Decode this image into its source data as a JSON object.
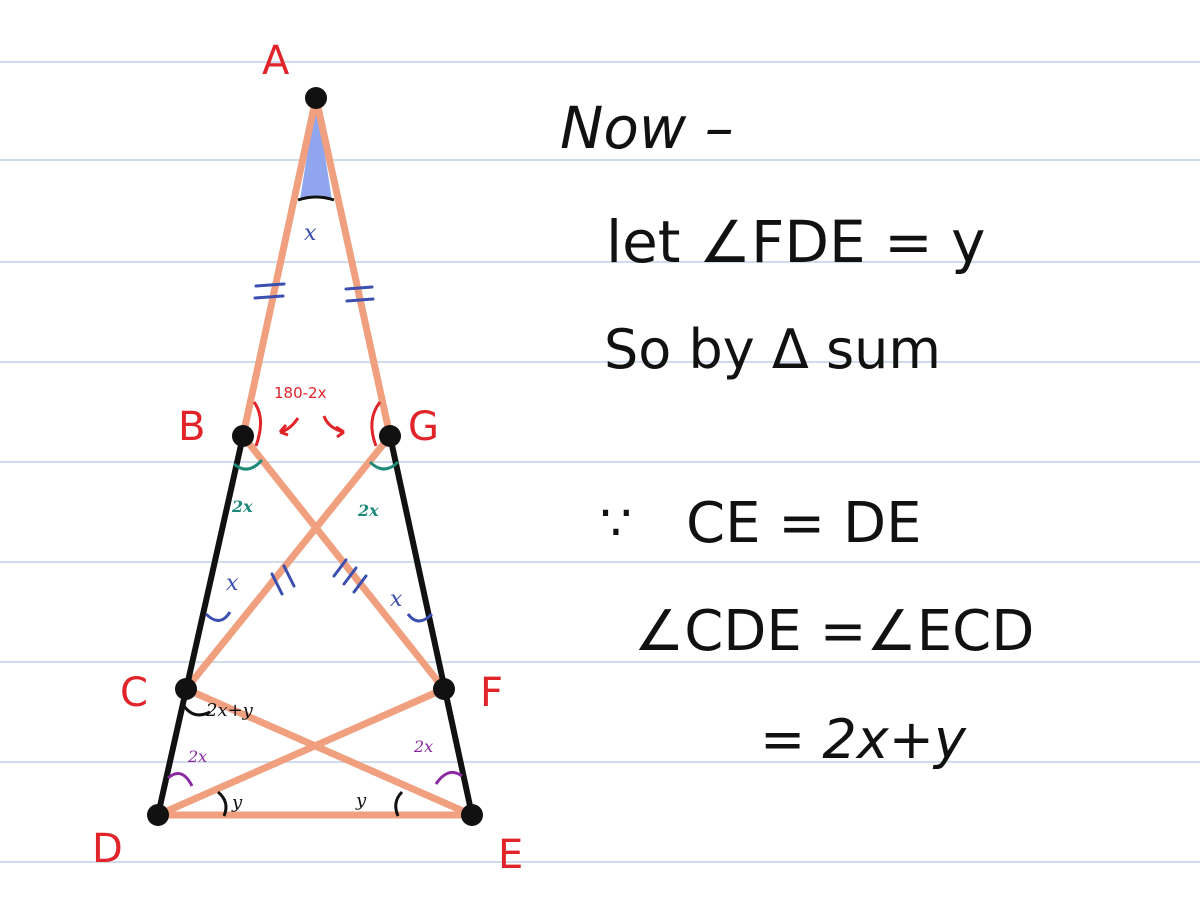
{
  "diagram": {
    "vertices": {
      "A": "A",
      "B": "B",
      "G": "G",
      "C": "C",
      "F": "F",
      "D": "D",
      "E": "E"
    },
    "angle_labels": {
      "apex": "x",
      "b_exterior": "180-2x",
      "b_lower": "2x",
      "g_lower": "2x",
      "c_lower": "x",
      "f_lower": "x",
      "c_angle": "2x+y",
      "d_upper": "2x",
      "e_upper": "2x",
      "d_lower": "y",
      "e_lower": "y"
    },
    "colors": {
      "orange_edges": "#f0a07e",
      "black_edges": "#111111",
      "vertex_labels": "#e0242a",
      "apex_fill": "#8fa6ef"
    }
  },
  "notes": {
    "line1": "Now –",
    "line2": "let ∠FDE = y",
    "line3": "So by Δ sum",
    "line4_because": "∵",
    "line4": "CE = DE",
    "line5": "∠CDE =∠ECD",
    "line6": "= 2x+y"
  }
}
